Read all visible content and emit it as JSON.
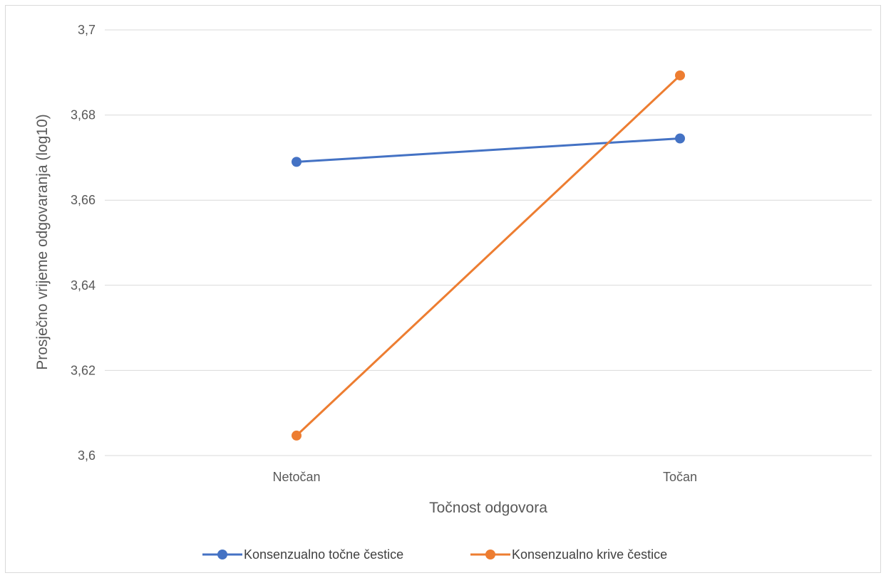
{
  "chart_data": {
    "type": "line",
    "title": "",
    "xlabel": "Točnost odgovora",
    "ylabel": "Prosječno vrijeme odgovaranja (log10)",
    "categories": [
      "Netočan",
      "Točan"
    ],
    "ylim": [
      3.6,
      3.7
    ],
    "yticks": [
      "3,6",
      "3,62",
      "3,64",
      "3,66",
      "3,68",
      "3,7"
    ],
    "ytick_values": [
      3.6,
      3.62,
      3.64,
      3.66,
      3.68,
      3.7
    ],
    "grid": true,
    "legend_position": "bottom",
    "series": [
      {
        "name": "Konsenzualno točne čestice",
        "values": [
          3.669,
          3.6745
        ],
        "color": "#4472c4"
      },
      {
        "name": "Konsenzualno krive čestice",
        "values": [
          3.6047,
          3.6893
        ],
        "color": "#ed7d31"
      }
    ]
  }
}
